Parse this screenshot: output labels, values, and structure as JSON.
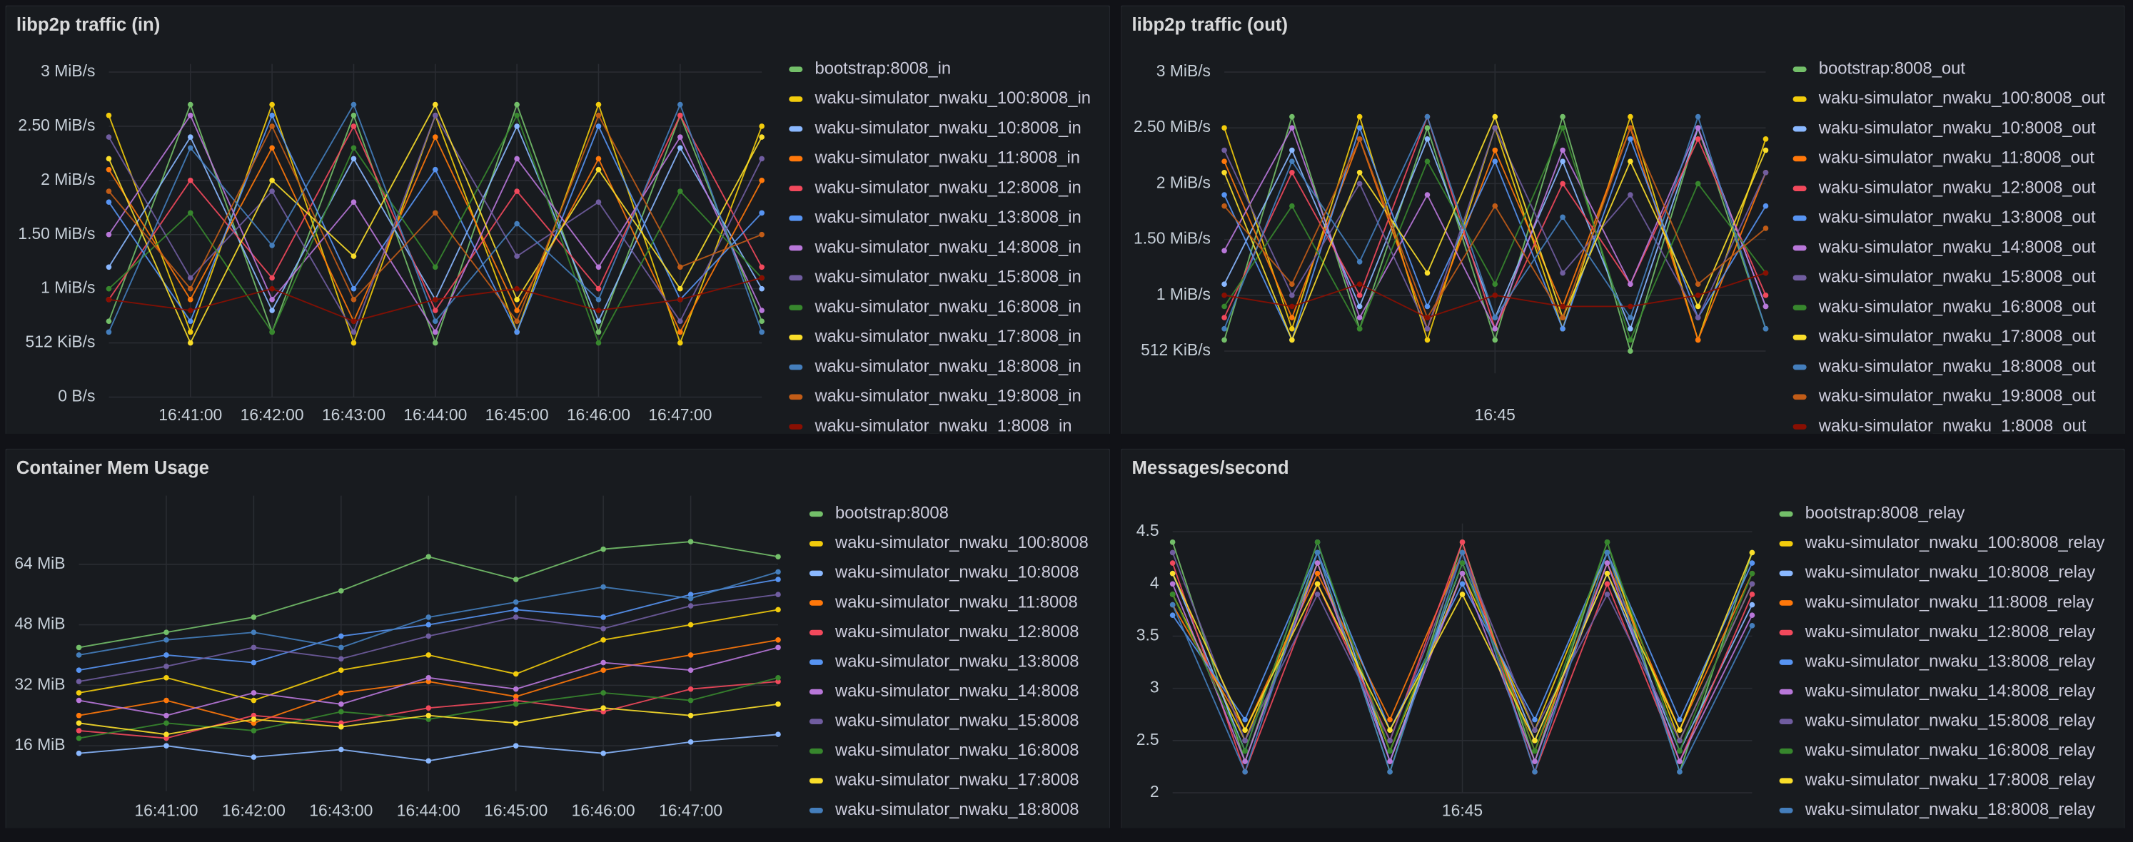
{
  "chart_data": [
    {
      "type": "line",
      "title": "libp2p traffic (in)",
      "grid": true,
      "legend": "right",
      "categories": [
        null,
        "16:41:00",
        "16:42:00",
        "16:43:00",
        "16:44:00",
        "16:45:00",
        "16:46:00",
        "16:47:00",
        null
      ],
      "ylim": [
        0,
        3
      ],
      "yticks": [
        {
          "value": 0,
          "label": "0 B/s"
        },
        {
          "value": 0.5,
          "label": "512 KiB/s"
        },
        {
          "value": 1,
          "label": "1 MiB/s"
        },
        {
          "value": 1.5,
          "label": "1.50 MiB/s"
        },
        {
          "value": 2,
          "label": "2 MiB/s"
        },
        {
          "value": 2.5,
          "label": "2.50 MiB/s"
        },
        {
          "value": 3,
          "label": "3 MiB/s"
        }
      ],
      "series": [
        {
          "name": "bootstrap:8008_in",
          "color": "#73bf69",
          "values": [
            0.7,
            2.7,
            0.6,
            2.6,
            0.5,
            2.7,
            0.6,
            2.6,
            0.7
          ]
        },
        {
          "name": "waku-simulator_nwaku_100:8008_in",
          "color": "#f2cc0c",
          "values": [
            2.6,
            0.6,
            2.7,
            0.5,
            2.6,
            0.6,
            2.7,
            0.5,
            2.5
          ]
        },
        {
          "name": "waku-simulator_nwaku_10:8008_in",
          "color": "#8ab8ff",
          "values": [
            1.2,
            2.4,
            0.8,
            2.2,
            0.9,
            2.5,
            0.7,
            2.3,
            1.0
          ]
        },
        {
          "name": "waku-simulator_nwaku_11:8008_in",
          "color": "#ff780a",
          "values": [
            2.1,
            0.9,
            2.3,
            0.7,
            2.4,
            0.8,
            2.2,
            0.6,
            2.0
          ]
        },
        {
          "name": "waku-simulator_nwaku_12:8008_in",
          "color": "#f2495c",
          "values": [
            0.9,
            2.0,
            1.1,
            2.5,
            0.8,
            1.9,
            1.0,
            2.6,
            1.2
          ]
        },
        {
          "name": "waku-simulator_nwaku_13:8008_in",
          "color": "#5794f2",
          "values": [
            1.8,
            0.7,
            2.6,
            1.0,
            2.1,
            0.6,
            2.5,
            0.9,
            1.7
          ]
        },
        {
          "name": "waku-simulator_nwaku_14:8008_in",
          "color": "#b877d9",
          "values": [
            1.5,
            2.6,
            0.9,
            1.8,
            0.6,
            2.2,
            1.2,
            2.4,
            0.8
          ]
        },
        {
          "name": "waku-simulator_nwaku_15:8008_in",
          "color": "#705da0",
          "values": [
            2.4,
            1.1,
            1.9,
            0.6,
            2.6,
            1.3,
            1.8,
            0.7,
            2.2
          ]
        },
        {
          "name": "waku-simulator_nwaku_16:8008_in",
          "color": "#37872d",
          "values": [
            1.0,
            1.7,
            0.6,
            2.3,
            1.2,
            2.6,
            0.5,
            1.9,
            1.1
          ]
        },
        {
          "name": "waku-simulator_nwaku_17:8008_in",
          "color": "#fade2a",
          "values": [
            2.2,
            0.5,
            2.0,
            1.3,
            2.7,
            0.9,
            2.1,
            1.0,
            2.4
          ]
        },
        {
          "name": "waku-simulator_nwaku_18:8008_in",
          "color": "#447ebc",
          "values": [
            0.6,
            2.3,
            1.4,
            2.7,
            0.7,
            1.6,
            0.9,
            2.7,
            0.6
          ]
        },
        {
          "name": "waku-simulator_nwaku_19:8008_in",
          "color": "#c15c17",
          "values": [
            1.9,
            1.0,
            2.5,
            0.9,
            1.7,
            0.7,
            2.6,
            1.2,
            1.5
          ]
        },
        {
          "name": "waku-simulator_nwaku_1:8008_in",
          "color": "#890f02",
          "values": [
            0.9,
            0.8,
            1.0,
            0.7,
            0.9,
            1.0,
            0.8,
            0.9,
            1.1
          ]
        }
      ]
    },
    {
      "type": "line",
      "title": "libp2p traffic (out)",
      "grid": true,
      "legend": "right",
      "categories": [
        null,
        null,
        null,
        null,
        "16:45",
        null,
        null,
        null,
        null
      ],
      "ylim": [
        0.3,
        3
      ],
      "yticks": [
        {
          "value": 0.5,
          "label": "512 KiB/s"
        },
        {
          "value": 1,
          "label": "1 MiB/s"
        },
        {
          "value": 1.5,
          "label": "1.50 MiB/s"
        },
        {
          "value": 2,
          "label": "2 MiB/s"
        },
        {
          "value": 2.5,
          "label": "2.50 MiB/s"
        },
        {
          "value": 3,
          "label": "3 MiB/s"
        }
      ],
      "series": [
        {
          "name": "bootstrap:8008_out",
          "color": "#73bf69",
          "values": [
            0.6,
            2.6,
            0.7,
            2.5,
            0.6,
            2.6,
            0.5,
            2.5,
            0.7
          ]
        },
        {
          "name": "waku-simulator_nwaku_100:8008_out",
          "color": "#f2cc0c",
          "values": [
            2.5,
            0.7,
            2.6,
            0.6,
            2.5,
            0.7,
            2.6,
            0.6,
            2.4
          ]
        },
        {
          "name": "waku-simulator_nwaku_10:8008_out",
          "color": "#8ab8ff",
          "values": [
            1.1,
            2.3,
            0.9,
            2.4,
            0.8,
            2.2,
            0.7,
            2.5,
            0.9
          ]
        },
        {
          "name": "waku-simulator_nwaku_11:8008_out",
          "color": "#ff780a",
          "values": [
            2.2,
            0.8,
            2.4,
            0.7,
            2.3,
            0.9,
            2.5,
            0.6,
            2.1
          ]
        },
        {
          "name": "waku-simulator_nwaku_12:8008_out",
          "color": "#f2495c",
          "values": [
            0.8,
            2.1,
            1.0,
            2.6,
            0.7,
            2.0,
            1.1,
            2.4,
            1.0
          ]
        },
        {
          "name": "waku-simulator_nwaku_13:8008_out",
          "color": "#5794f2",
          "values": [
            1.9,
            0.6,
            2.5,
            0.9,
            2.2,
            0.7,
            2.4,
            0.8,
            1.8
          ]
        },
        {
          "name": "waku-simulator_nwaku_14:8008_out",
          "color": "#b877d9",
          "values": [
            1.4,
            2.5,
            0.8,
            1.9,
            0.7,
            2.3,
            1.1,
            2.5,
            0.9
          ]
        },
        {
          "name": "waku-simulator_nwaku_15:8008_out",
          "color": "#705da0",
          "values": [
            2.3,
            1.0,
            2.0,
            0.7,
            2.5,
            1.2,
            1.9,
            0.8,
            2.1
          ]
        },
        {
          "name": "waku-simulator_nwaku_16:8008_out",
          "color": "#37872d",
          "values": [
            0.9,
            1.8,
            0.7,
            2.2,
            1.1,
            2.5,
            0.6,
            2.0,
            1.2
          ]
        },
        {
          "name": "waku-simulator_nwaku_17:8008_out",
          "color": "#fade2a",
          "values": [
            2.1,
            0.6,
            2.1,
            1.2,
            2.6,
            0.8,
            2.2,
            0.9,
            2.3
          ]
        },
        {
          "name": "waku-simulator_nwaku_18:8008_out",
          "color": "#447ebc",
          "values": [
            0.7,
            2.2,
            1.3,
            2.6,
            0.8,
            1.7,
            0.8,
            2.6,
            0.7
          ]
        },
        {
          "name": "waku-simulator_nwaku_19:8008_out",
          "color": "#c15c17",
          "values": [
            1.8,
            1.1,
            2.4,
            0.8,
            1.8,
            0.8,
            2.5,
            1.1,
            1.6
          ]
        },
        {
          "name": "waku-simulator_nwaku_1:8008_out",
          "color": "#890f02",
          "values": [
            1.0,
            0.9,
            1.1,
            0.8,
            1.0,
            0.9,
            0.9,
            1.0,
            1.2
          ]
        }
      ]
    },
    {
      "type": "line",
      "title": "Container Mem Usage",
      "grid": true,
      "legend": "right",
      "categories": [
        null,
        "16:41:00",
        "16:42:00",
        "16:43:00",
        "16:44:00",
        "16:45:00",
        "16:46:00",
        "16:47:00",
        null
      ],
      "ylim": [
        4,
        80
      ],
      "yticks": [
        {
          "value": 16,
          "label": "16 MiB"
        },
        {
          "value": 32,
          "label": "32 MiB"
        },
        {
          "value": 48,
          "label": "48 MiB"
        },
        {
          "value": 64,
          "label": "64 MiB"
        }
      ],
      "series": [
        {
          "name": "bootstrap:8008",
          "color": "#73bf69",
          "values": [
            42,
            46,
            50,
            57,
            66,
            60,
            68,
            70,
            66
          ]
        },
        {
          "name": "waku-simulator_nwaku_100:8008",
          "color": "#f2cc0c",
          "values": [
            30,
            34,
            28,
            36,
            40,
            35,
            44,
            48,
            52
          ]
        },
        {
          "name": "waku-simulator_nwaku_10:8008",
          "color": "#8ab8ff",
          "values": [
            14,
            16,
            13,
            15,
            12,
            16,
            14,
            17,
            19
          ]
        },
        {
          "name": "waku-simulator_nwaku_11:8008",
          "color": "#ff780a",
          "values": [
            24,
            28,
            22,
            30,
            33,
            29,
            36,
            40,
            44
          ]
        },
        {
          "name": "waku-simulator_nwaku_12:8008",
          "color": "#f2495c",
          "values": [
            20,
            18,
            24,
            22,
            26,
            28,
            25,
            31,
            33
          ]
        },
        {
          "name": "waku-simulator_nwaku_13:8008",
          "color": "#5794f2",
          "values": [
            36,
            40,
            38,
            45,
            48,
            52,
            50,
            56,
            60
          ]
        },
        {
          "name": "waku-simulator_nwaku_14:8008",
          "color": "#b877d9",
          "values": [
            28,
            24,
            30,
            27,
            34,
            31,
            38,
            36,
            42
          ]
        },
        {
          "name": "waku-simulator_nwaku_15:8008",
          "color": "#705da0",
          "values": [
            33,
            37,
            42,
            39,
            45,
            50,
            47,
            53,
            56
          ]
        },
        {
          "name": "waku-simulator_nwaku_16:8008",
          "color": "#37872d",
          "values": [
            18,
            22,
            20,
            25,
            23,
            27,
            30,
            28,
            34
          ]
        },
        {
          "name": "waku-simulator_nwaku_17:8008",
          "color": "#fade2a",
          "values": [
            22,
            19,
            23,
            21,
            24,
            22,
            26,
            24,
            27
          ]
        },
        {
          "name": "waku-simulator_nwaku_18:8008",
          "color": "#447ebc",
          "values": [
            40,
            44,
            46,
            42,
            50,
            54,
            58,
            55,
            62
          ]
        }
      ]
    },
    {
      "type": "line",
      "title": "Messages/second",
      "grid": true,
      "legend": "right",
      "categories": [
        null,
        null,
        null,
        null,
        "16:45",
        null,
        null,
        null,
        null
      ],
      "ylim": [
        2,
        4.5
      ],
      "yticks": [
        2,
        2.5,
        3,
        3.5,
        4,
        4.5
      ],
      "series": [
        {
          "name": "bootstrap:8008_relay",
          "color": "#73bf69",
          "values": [
            4.4,
            2.3,
            4.3,
            2.2,
            4.4,
            2.3,
            4.4,
            2.2,
            4.3
          ]
        },
        {
          "name": "waku-simulator_nwaku_100:8008_relay",
          "color": "#f2cc0c",
          "values": [
            3.9,
            2.5,
            4.2,
            2.4,
            4.1,
            2.6,
            4.3,
            2.5,
            4.0
          ]
        },
        {
          "name": "waku-simulator_nwaku_10:8008_relay",
          "color": "#8ab8ff",
          "values": [
            4.1,
            2.4,
            4.4,
            2.3,
            4.2,
            2.5,
            4.1,
            2.4,
            3.8
          ]
        },
        {
          "name": "waku-simulator_nwaku_11:8008_relay",
          "color": "#ff780a",
          "values": [
            3.8,
            2.6,
            4.1,
            2.7,
            4.3,
            2.4,
            4.2,
            2.6,
            4.1
          ]
        },
        {
          "name": "waku-simulator_nwaku_12:8008_relay",
          "color": "#f2495c",
          "values": [
            4.2,
            2.2,
            4.0,
            2.5,
            4.4,
            2.2,
            4.0,
            2.3,
            3.9
          ]
        },
        {
          "name": "waku-simulator_nwaku_13:8008_relay",
          "color": "#5794f2",
          "values": [
            3.7,
            2.7,
            4.3,
            2.6,
            4.0,
            2.7,
            4.3,
            2.7,
            4.2
          ]
        },
        {
          "name": "waku-simulator_nwaku_14:8008_relay",
          "color": "#b877d9",
          "values": [
            4.0,
            2.3,
            4.2,
            2.3,
            4.1,
            2.3,
            4.2,
            2.3,
            3.7
          ]
        },
        {
          "name": "waku-simulator_nwaku_15:8008_relay",
          "color": "#705da0",
          "values": [
            4.3,
            2.5,
            3.9,
            2.5,
            4.3,
            2.6,
            3.9,
            2.5,
            4.0
          ]
        },
        {
          "name": "waku-simulator_nwaku_16:8008_relay",
          "color": "#37872d",
          "values": [
            3.9,
            2.4,
            4.4,
            2.4,
            4.2,
            2.4,
            4.4,
            2.4,
            4.1
          ]
        },
        {
          "name": "waku-simulator_nwaku_17:8008_relay",
          "color": "#fade2a",
          "values": [
            4.1,
            2.6,
            4.0,
            2.6,
            3.9,
            2.5,
            4.1,
            2.6,
            4.3
          ]
        },
        {
          "name": "waku-simulator_nwaku_18:8008_relay",
          "color": "#447ebc",
          "values": [
            3.8,
            2.2,
            4.3,
            2.2,
            4.3,
            2.2,
            4.3,
            2.2,
            3.6
          ]
        }
      ]
    }
  ]
}
